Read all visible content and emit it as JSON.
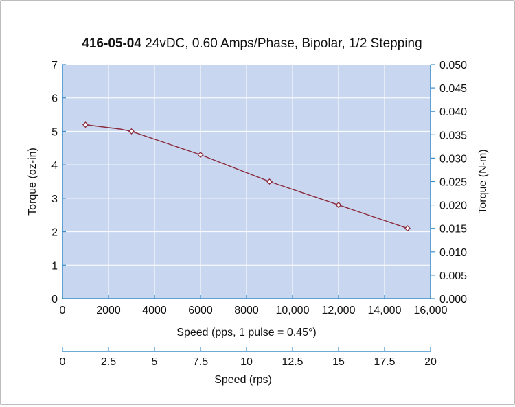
{
  "chart_data": {
    "type": "line",
    "title_bold": "416-05-04",
    "title_rest": " 24vDC, 0.60 Amps/Phase, Bipolar, 1/2 Stepping",
    "xlabel": "Speed (pps, 1 pulse = 0.45°)",
    "x2label": "Speed (rps)",
    "ylabel": "Torque (oz-in)",
    "y2label": "Torque (N-m)",
    "xlim": [
      0,
      16000
    ],
    "ylim": [
      0,
      7
    ],
    "x2lim": [
      0,
      20
    ],
    "y2lim": [
      0,
      0.05
    ],
    "x_ticks": [
      0,
      2000,
      4000,
      6000,
      8000,
      10000,
      12000,
      14000,
      16000
    ],
    "x_tick_labels": [
      "0",
      "2000",
      "4000",
      "6000",
      "8000",
      "10,000",
      "12,000",
      "14,000",
      "16,000"
    ],
    "y_ticks": [
      0,
      1,
      2,
      3,
      4,
      5,
      6,
      7
    ],
    "y_tick_labels": [
      "0",
      "1",
      "2",
      "3",
      "4",
      "5",
      "6",
      "7"
    ],
    "y2_ticks": [
      0,
      0.005,
      0.01,
      0.015,
      0.02,
      0.025,
      0.03,
      0.035,
      0.04,
      0.045,
      0.05
    ],
    "y2_tick_labels": [
      "0.000",
      "0.005",
      "0.010",
      "0.015",
      "0.020",
      "0.025",
      "0.030",
      "0.035",
      "0.040",
      "0.045",
      "0.050"
    ],
    "x2_ticks": [
      0,
      2.5,
      5,
      7.5,
      10,
      12.5,
      15,
      17.5,
      20
    ],
    "x2_tick_labels": [
      "0",
      "2.5",
      "5",
      "7.5",
      "10",
      "12.5",
      "15",
      "17.5",
      "20"
    ],
    "grid": true,
    "series": [
      {
        "x": [
          1000,
          2500,
          3000,
          6000,
          9000,
          12000,
          15000
        ],
        "y": [
          5.2,
          5.07,
          5.0,
          4.3,
          3.5,
          2.8,
          2.1
        ],
        "markers": [
          true,
          false,
          true,
          true,
          true,
          true,
          true
        ]
      }
    ],
    "colors": {
      "plot_background": "#c8d7ef",
      "gridline": "#ffffff",
      "series_line": "#8b2a3c",
      "axis": "#3a8fc9"
    }
  }
}
